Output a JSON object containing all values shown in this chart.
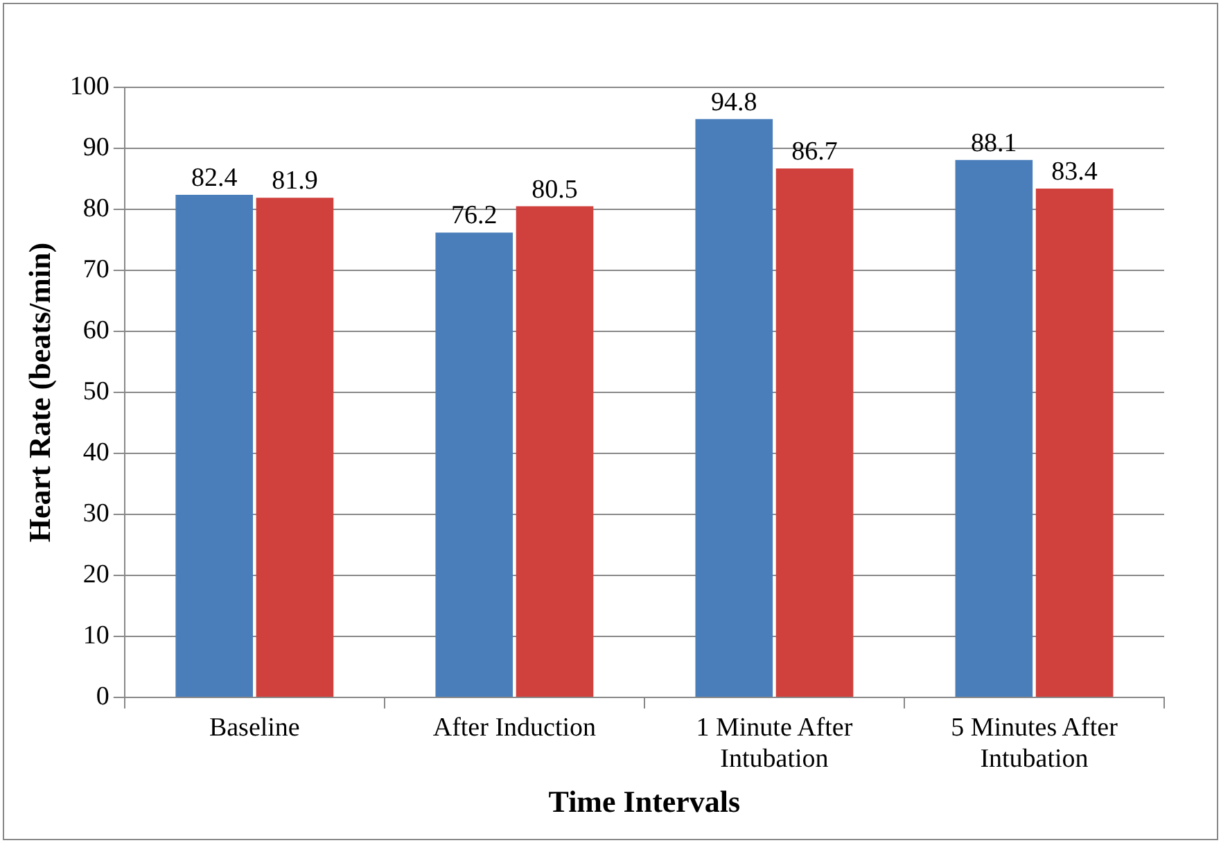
{
  "chart_data": {
    "type": "bar",
    "xlabel": "Time Intervals",
    "ylabel": "Heart Rate (beats/min)",
    "categories": [
      "Baseline",
      "After Induction",
      "1 Minute After Intubation",
      "5 Minutes After Intubation"
    ],
    "series": [
      {
        "color": "#4a7ebb",
        "values": [
          82.4,
          76.2,
          94.8,
          88.1
        ]
      },
      {
        "color": "#d0403c",
        "values": [
          81.9,
          80.5,
          86.7,
          83.4
        ]
      }
    ],
    "ylim": [
      0,
      100
    ],
    "yticks": [
      0,
      10,
      20,
      30,
      40,
      50,
      60,
      70,
      80,
      90,
      100
    ],
    "grid": "y",
    "legend": false,
    "data_labels": true
  }
}
